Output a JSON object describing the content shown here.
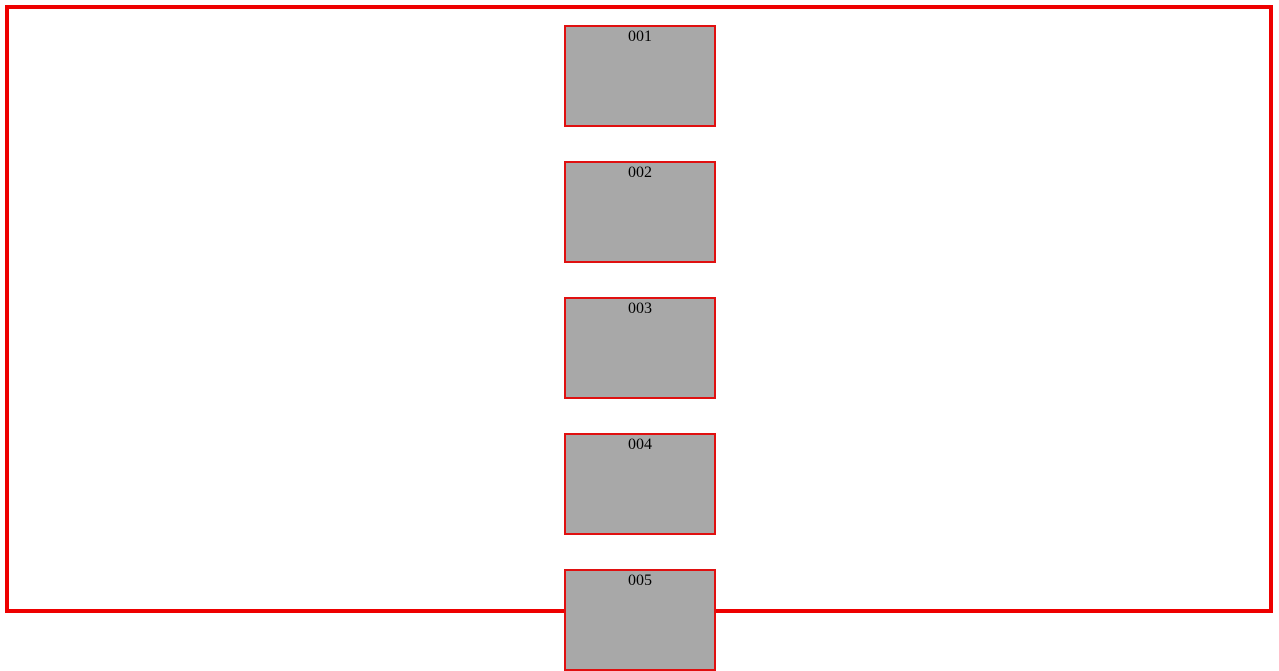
{
  "boxes": [
    {
      "label": "001"
    },
    {
      "label": "002"
    },
    {
      "label": "003"
    },
    {
      "label": "004"
    },
    {
      "label": "005"
    }
  ],
  "colors": {
    "frame_border": "#ee0000",
    "box_border": "#e01010",
    "box_fill": "#a8a8a8"
  }
}
